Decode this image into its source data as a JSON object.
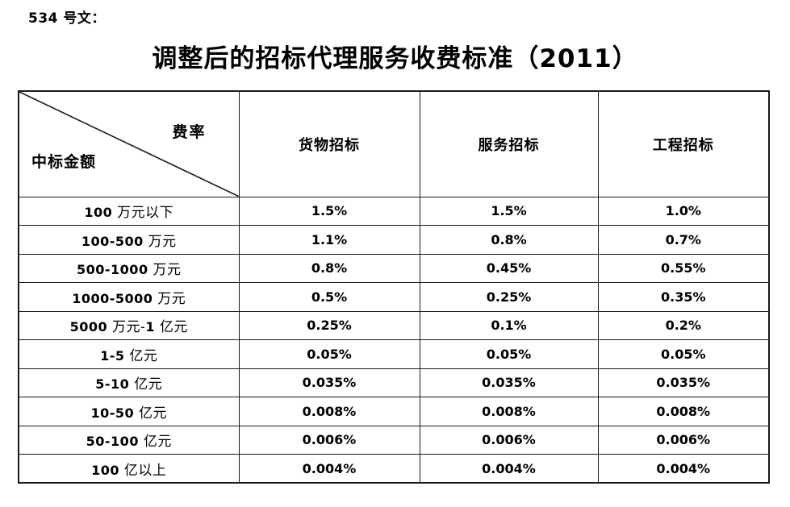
{
  "page": {
    "doc_number": "534 号文：",
    "title": "调整后的招标代理服务收费标准（2011）"
  },
  "table": {
    "corner": {
      "top_right": "费率",
      "bottom_left": "中标金额"
    },
    "columns": [
      "货物招标",
      "服务招标",
      "工程招标"
    ],
    "rows": [
      {
        "label": "100 万元以下",
        "goods": "1.5%",
        "services": "1.5%",
        "engineering": "1.0%"
      },
      {
        "label": "100-500 万元",
        "goods": "1.1%",
        "services": "0.8%",
        "engineering": "0.7%"
      },
      {
        "label": "500-1000 万元",
        "goods": "0.8%",
        "services": "0.45%",
        "engineering": "0.55%"
      },
      {
        "label": "1000-5000 万元",
        "goods": "0.5%",
        "services": "0.25%",
        "engineering": "0.35%"
      },
      {
        "label": "5000 万元-1 亿元",
        "goods": "0.25%",
        "services": "0.1%",
        "engineering": "0.2%"
      },
      {
        "label": "1-5 亿元",
        "goods": "0.05%",
        "services": "0.05%",
        "engineering": "0.05%"
      },
      {
        "label": "5-10 亿元",
        "goods": "0.035%",
        "services": "0.035%",
        "engineering": "0.035%"
      },
      {
        "label": "10-50 亿元",
        "goods": "0.008%",
        "services": "0.008%",
        "engineering": "0.008%"
      },
      {
        "label": "50-100 亿元",
        "goods": "0.006%",
        "services": "0.006%",
        "engineering": "0.006%"
      },
      {
        "label": "100 亿以上",
        "goods": "0.004%",
        "services": "0.004%",
        "engineering": "0.004%"
      }
    ]
  },
  "colors": {
    "ink": "#1a1a1a",
    "background": "#ffffff"
  }
}
